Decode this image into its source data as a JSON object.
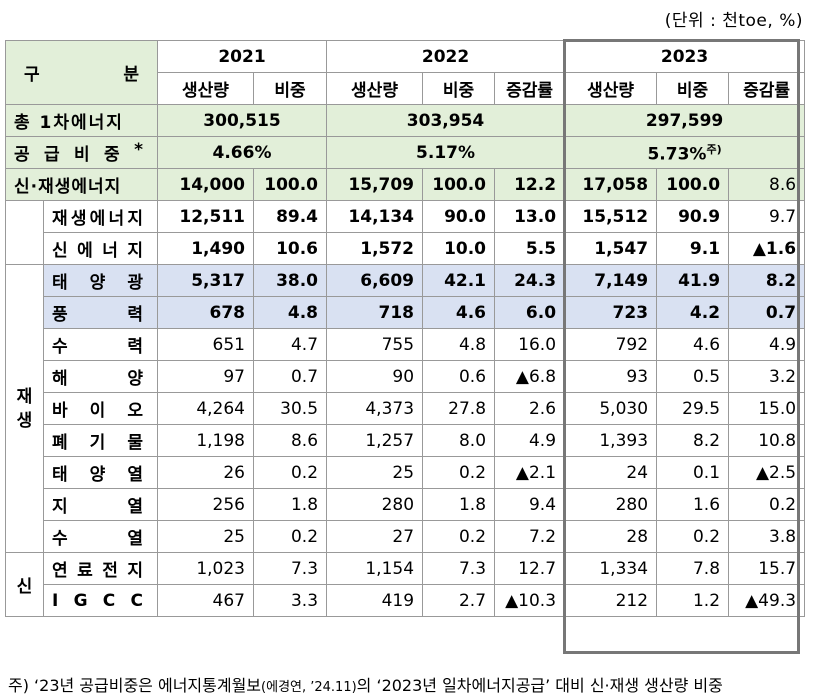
{
  "unit_note": "(단위 : 천toe, %)",
  "header": {
    "category": [
      "구",
      "분"
    ],
    "years": [
      "2021",
      "2022",
      "2023"
    ],
    "sub_2021": [
      "생산량",
      "비중"
    ],
    "sub_2022": [
      "생산량",
      "비중",
      "증감률"
    ],
    "sub_2023": [
      "생산량",
      "비중",
      "증감률"
    ]
  },
  "summary": {
    "primary_label": "총 1차에너지",
    "primary": [
      "300,515",
      "303,954",
      "297,599"
    ],
    "share_label": "공급비중*",
    "share_chars": [
      "공",
      "급",
      "비",
      "중",
      "*"
    ],
    "share": [
      "4.66%",
      "5.17%",
      "5.73%"
    ],
    "share_sup": "주)",
    "total_label": "신·재생에너지",
    "total": [
      "14,000",
      "100.0",
      "15,709",
      "100.0",
      "12.2",
      "17,058",
      "100.0",
      "8.6"
    ]
  },
  "split_rows": [
    {
      "label": "재생에너지",
      "chars": [
        "재",
        "생",
        "에",
        "너",
        "지"
      ],
      "values": [
        "12,511",
        "89.4",
        "14,134",
        "90.0",
        "13.0",
        "15,512",
        "90.9",
        "9.7"
      ]
    },
    {
      "label": "신에너지",
      "chars": [
        "신",
        "에",
        "너",
        "지"
      ],
      "values": [
        "1,490",
        "10.6",
        "1,572",
        "10.0",
        "5.5",
        "1,547",
        "9.1",
        "▲1.6"
      ]
    }
  ],
  "renewable_group": {
    "label": [
      "재",
      "생"
    ],
    "rows": [
      {
        "chars": [
          "태",
          "양",
          "광"
        ],
        "values": [
          "5,317",
          "38.0",
          "6,609",
          "42.1",
          "24.3",
          "7,149",
          "41.9",
          "8.2"
        ]
      },
      {
        "chars": [
          "풍",
          "력"
        ],
        "values": [
          "678",
          "4.8",
          "718",
          "4.6",
          "6.0",
          "723",
          "4.2",
          "0.7"
        ]
      },
      {
        "chars": [
          "수",
          "력"
        ],
        "values": [
          "651",
          "4.7",
          "755",
          "4.8",
          "16.0",
          "792",
          "4.6",
          "4.9"
        ]
      },
      {
        "chars": [
          "해",
          "양"
        ],
        "values": [
          "97",
          "0.7",
          "90",
          "0.6",
          "▲6.8",
          "93",
          "0.5",
          "3.2"
        ]
      },
      {
        "chars": [
          "바",
          "이",
          "오"
        ],
        "values": [
          "4,264",
          "30.5",
          "4,373",
          "27.8",
          "2.6",
          "5,030",
          "29.5",
          "15.0"
        ]
      },
      {
        "chars": [
          "폐",
          "기",
          "물"
        ],
        "values": [
          "1,198",
          "8.6",
          "1,257",
          "8.0",
          "4.9",
          "1,393",
          "8.2",
          "10.8"
        ]
      },
      {
        "chars": [
          "태",
          "양",
          "열"
        ],
        "values": [
          "26",
          "0.2",
          "25",
          "0.2",
          "▲2.1",
          "24",
          "0.1",
          "▲2.5"
        ]
      },
      {
        "chars": [
          "지",
          "열"
        ],
        "values": [
          "256",
          "1.8",
          "280",
          "1.8",
          "9.4",
          "280",
          "1.6",
          "0.2"
        ]
      },
      {
        "chars": [
          "수",
          "열"
        ],
        "values": [
          "25",
          "0.2",
          "27",
          "0.2",
          "7.2",
          "28",
          "0.2",
          "3.8"
        ]
      }
    ]
  },
  "new_group": {
    "label": "신",
    "rows": [
      {
        "chars": [
          "연",
          "료",
          "전",
          "지"
        ],
        "values": [
          "1,023",
          "7.3",
          "1,154",
          "7.3",
          "12.7",
          "1,334",
          "7.8",
          "15.7"
        ]
      },
      {
        "chars": [
          "I",
          "G",
          "C",
          "C"
        ],
        "values": [
          "467",
          "3.3",
          "419",
          "2.7",
          "▲10.3",
          "212",
          "1.2",
          "▲49.3"
        ]
      }
    ]
  },
  "footnote": {
    "prefix": "주)  ‘23년 공급비중은 에너지통계월보",
    "source": "(에경연, ’24.11)",
    "suffix": "의 ‘2023년 일차에너지공급’ 대비 신·재생 생산량 비중"
  }
}
